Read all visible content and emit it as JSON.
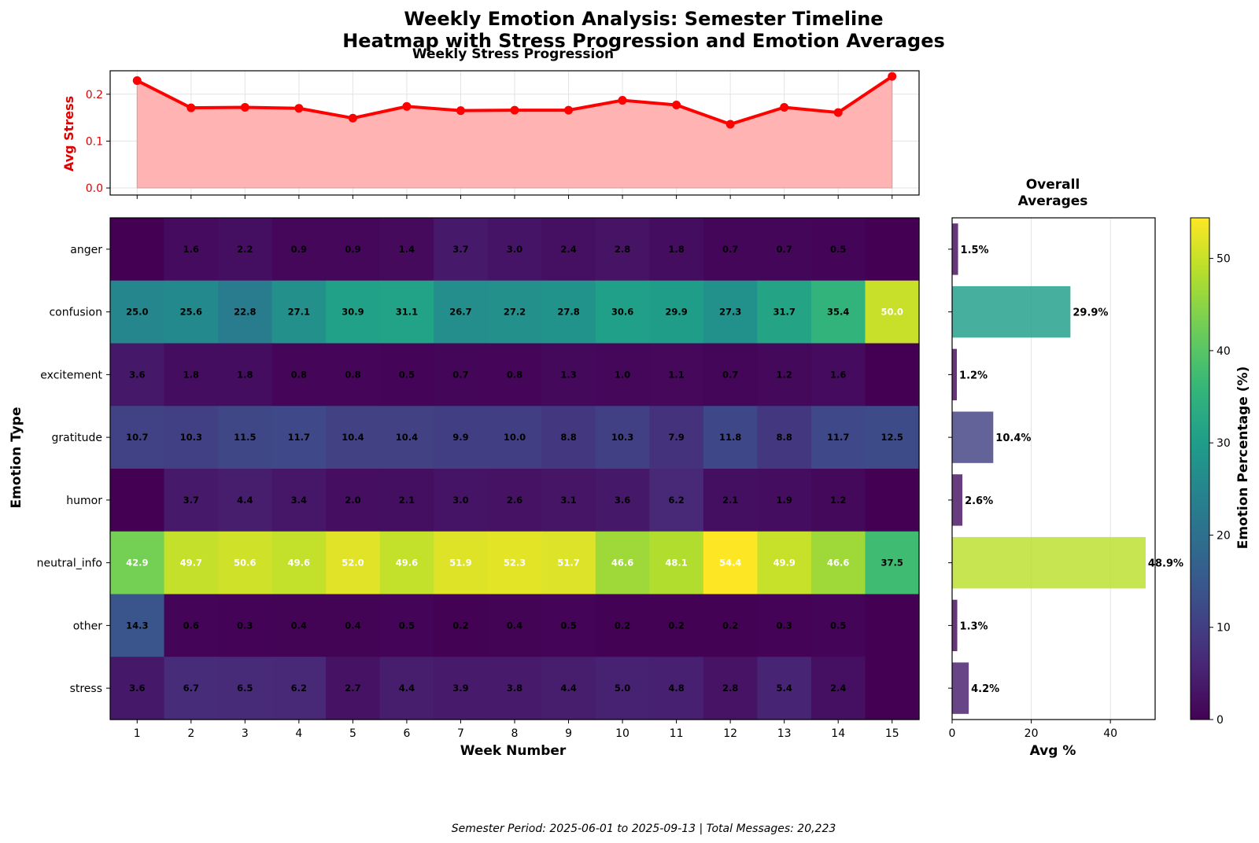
{
  "figure": {
    "title_line1": "Weekly Emotion Analysis: Semester Timeline",
    "title_line2": "Heatmap with Stress Progression and Emotion Averages",
    "footer": "Semester Period: 2025-06-01 to 2025-09-13 | Total Messages: 20,223"
  },
  "chart_data": [
    {
      "type": "line",
      "title": "Weekly Stress Progression",
      "ylabel": "Avg Stress",
      "ylim": [
        -0.015,
        0.25
      ],
      "yticks": [
        0.0,
        0.1,
        0.2
      ],
      "x": [
        1,
        2,
        3,
        4,
        5,
        6,
        7,
        8,
        9,
        10,
        11,
        12,
        13,
        14,
        15
      ],
      "values": [
        0.229,
        0.171,
        0.172,
        0.17,
        0.149,
        0.174,
        0.165,
        0.166,
        0.166,
        0.187,
        0.177,
        0.136,
        0.172,
        0.161,
        0.238
      ],
      "color": "#ff0000",
      "fill_color": "#ffb3b3",
      "grid": true
    },
    {
      "type": "heatmap",
      "xlabel": "Week Number",
      "ylabel": "Emotion Type",
      "x": [
        1,
        2,
        3,
        4,
        5,
        6,
        7,
        8,
        9,
        10,
        11,
        12,
        13,
        14,
        15
      ],
      "rows": [
        "anger",
        "confusion",
        "excitement",
        "gratitude",
        "humor",
        "neutral_info",
        "other",
        "stress"
      ],
      "values": [
        [
          0,
          1.6,
          2.2,
          0.9,
          0.9,
          1.4,
          3.7,
          3.0,
          2.4,
          2.8,
          1.8,
          0.7,
          0.7,
          0.5,
          0
        ],
        [
          25.0,
          25.6,
          22.8,
          27.1,
          30.9,
          31.1,
          26.7,
          27.2,
          27.8,
          30.6,
          29.9,
          27.3,
          31.7,
          35.4,
          50.0
        ],
        [
          3.6,
          1.8,
          1.8,
          0.8,
          0.8,
          0.5,
          0.7,
          0.8,
          1.3,
          1.0,
          1.1,
          0.7,
          1.2,
          1.6,
          0
        ],
        [
          10.7,
          10.3,
          11.5,
          11.7,
          10.4,
          10.4,
          9.9,
          10.0,
          8.8,
          10.3,
          7.9,
          11.8,
          8.8,
          11.7,
          12.5
        ],
        [
          0,
          3.7,
          4.4,
          3.4,
          2.0,
          2.1,
          3.0,
          2.6,
          3.1,
          3.6,
          6.2,
          2.1,
          1.9,
          1.2,
          0
        ],
        [
          42.9,
          49.7,
          50.6,
          49.6,
          52.0,
          49.6,
          51.9,
          52.3,
          51.7,
          46.6,
          48.1,
          54.4,
          49.9,
          46.6,
          37.5
        ],
        [
          14.3,
          0.6,
          0.3,
          0.4,
          0.4,
          0.5,
          0.2,
          0.4,
          0.5,
          0.2,
          0.2,
          0.2,
          0.3,
          0.5,
          0
        ],
        [
          3.6,
          6.7,
          6.5,
          6.2,
          2.7,
          4.4,
          3.9,
          3.8,
          4.4,
          5.0,
          4.8,
          2.8,
          5.4,
          2.4,
          0
        ]
      ],
      "labels": [
        [
          "",
          "1.6",
          "2.2",
          "0.9",
          "0.9",
          "1.4",
          "3.7",
          "3.0",
          "2.4",
          "2.8",
          "1.8",
          "0.7",
          "0.7",
          "0.5",
          ""
        ],
        [
          "25.0",
          "25.6",
          "22.8",
          "27.1",
          "30.9",
          "31.1",
          "26.7",
          "27.2",
          "27.8",
          "30.6",
          "29.9",
          "27.3",
          "31.7",
          "35.4",
          "50.0"
        ],
        [
          "3.6",
          "1.8",
          "1.8",
          "0.8",
          "0.8",
          "0.5",
          "0.7",
          "0.8",
          "1.3",
          "1.0",
          "1.1",
          "0.7",
          "1.2",
          "1.6",
          ""
        ],
        [
          "10.7",
          "10.3",
          "11.5",
          "11.7",
          "10.4",
          "10.4",
          "9.9",
          "10.0",
          "8.8",
          "10.3",
          "7.9",
          "11.8",
          "8.8",
          "11.7",
          "12.5"
        ],
        [
          "",
          "3.7",
          "4.4",
          "3.4",
          "2.0",
          "2.1",
          "3.0",
          "2.6",
          "3.1",
          "3.6",
          "6.2",
          "2.1",
          "1.9",
          "1.2",
          ""
        ],
        [
          "42.9",
          "49.7",
          "50.6",
          "49.6",
          "52.0",
          "49.6",
          "51.9",
          "52.3",
          "51.7",
          "46.6",
          "48.1",
          "54.4",
          "49.9",
          "46.6",
          "37.5"
        ],
        [
          "14.3",
          "0.6",
          "0.3",
          "0.4",
          "0.4",
          "0.5",
          "0.2",
          "0.4",
          "0.5",
          "0.2",
          "0.2",
          "0.2",
          "0.3",
          "0.5",
          ""
        ],
        [
          "3.6",
          "6.7",
          "6.5",
          "6.2",
          "2.7",
          "4.4",
          "3.9",
          "3.8",
          "4.4",
          "5.0",
          "4.8",
          "2.8",
          "5.4",
          "2.4",
          ""
        ]
      ],
      "colormap": "viridis",
      "vmin": 0,
      "vmax": 54.4
    },
    {
      "type": "bar",
      "orientation": "horizontal",
      "title_line1": "Overall",
      "title_line2": "Averages",
      "xlabel": "Avg %",
      "categories": [
        "anger",
        "confusion",
        "excitement",
        "gratitude",
        "humor",
        "neutral_info",
        "other",
        "stress"
      ],
      "values": [
        1.5,
        29.9,
        1.2,
        10.4,
        2.6,
        48.9,
        1.3,
        4.2
      ],
      "labels": [
        "1.5%",
        "29.9%",
        "1.2%",
        "10.4%",
        "2.6%",
        "48.9%",
        "1.3%",
        "4.2%"
      ],
      "xlim": [
        0,
        51.3
      ],
      "xticks": [
        0,
        20,
        40
      ],
      "grid": true
    },
    {
      "type": "colorbar",
      "label": "Emotion Percentage (%)",
      "range": [
        0,
        54.4
      ],
      "ticks": [
        0,
        10,
        20,
        30,
        40,
        50
      ]
    }
  ]
}
